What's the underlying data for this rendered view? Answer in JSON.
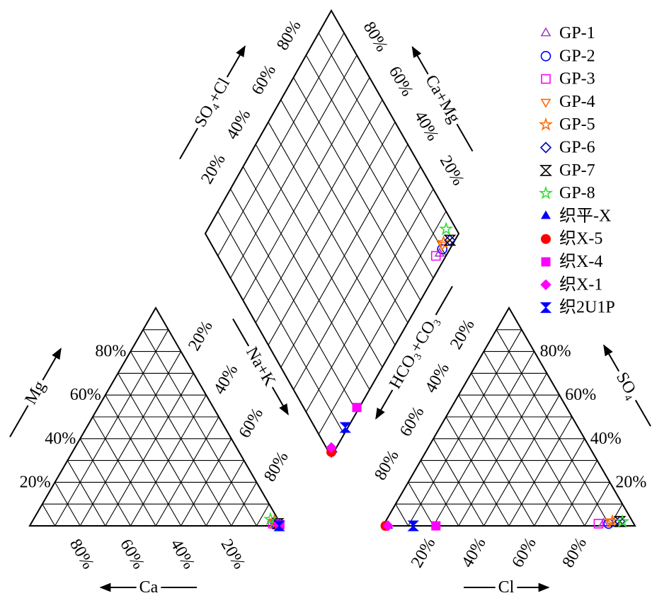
{
  "chart_data": {
    "type": "piper",
    "cation_axes": [
      "Ca",
      "Mg",
      "Na+K"
    ],
    "anion_axes": [
      "HCO₃+CO₃",
      "SO₄",
      "Cl"
    ],
    "diamond_axes": [
      "SO₄+Cl",
      "Ca+Mg"
    ],
    "ticks": [
      {
        "value": 20,
        "label": "20%"
      },
      {
        "value": 40,
        "label": "40%"
      },
      {
        "value": 60,
        "label": "60%"
      },
      {
        "value": 80,
        "label": "80%"
      }
    ],
    "grid_step": 10,
    "series": [
      {
        "name": "GP-1",
        "color": "#a040c0",
        "marker": "triangle-up",
        "filled": false,
        "cations": [
          2,
          1,
          97
        ],
        "anions": [
          12,
          1,
          87
        ]
      },
      {
        "name": "GP-2",
        "color": "#0000ff",
        "marker": "circle",
        "filled": false,
        "cations": [
          2,
          1,
          97
        ],
        "anions": [
          10,
          1,
          89
        ]
      },
      {
        "name": "GP-3",
        "color": "#ff00ff",
        "marker": "square",
        "filled": false,
        "cations": [
          3,
          1,
          96
        ],
        "anions": [
          14,
          1,
          85
        ]
      },
      {
        "name": "GP-4",
        "color": "#ff6a00",
        "marker": "triangle-down",
        "filled": false,
        "cations": [
          2,
          2,
          96
        ],
        "anions": [
          9,
          2,
          89
        ]
      },
      {
        "name": "GP-5",
        "color": "#ff6a00",
        "marker": "star",
        "filled": false,
        "cations": [
          2,
          2,
          96
        ],
        "anions": [
          8,
          2,
          90
        ]
      },
      {
        "name": "GP-6",
        "color": "#0000c0",
        "marker": "diamond",
        "filled": false,
        "cations": [
          1,
          1,
          98
        ],
        "anions": [
          5,
          2,
          93
        ]
      },
      {
        "name": "GP-7",
        "color": "#000000",
        "marker": "hourglass",
        "filled": false,
        "cations": [
          1,
          1,
          98
        ],
        "anions": [
          5,
          2,
          93
        ]
      },
      {
        "name": "GP-8",
        "color": "#33dd33",
        "marker": "star",
        "filled": false,
        "cations": [
          3,
          3,
          94
        ],
        "anions": [
          4,
          2,
          94
        ]
      },
      {
        "name": "织平-X",
        "color": "#0000ff",
        "marker": "triangle-up",
        "filled": true,
        "cations": [
          0.5,
          0.5,
          99
        ],
        "anions": [
          98,
          0,
          2
        ]
      },
      {
        "name": "织X-5",
        "color": "#ff0000",
        "marker": "circle",
        "filled": true,
        "cations": [
          1,
          0,
          99
        ],
        "anions": [
          99,
          0,
          1
        ]
      },
      {
        "name": "织X-4",
        "color": "#ff00ff",
        "marker": "square",
        "filled": true,
        "cations": [
          0.5,
          0.5,
          99
        ],
        "anions": [
          79,
          0,
          21
        ]
      },
      {
        "name": "织X-1",
        "color": "#ff00ff",
        "marker": "diamond",
        "filled": true,
        "cations": [
          1,
          1,
          98
        ],
        "anions": [
          98,
          0,
          2
        ]
      },
      {
        "name": "织2U1P",
        "color": "#0000ff",
        "marker": "hourglass",
        "filled": true,
        "cations": [
          1,
          0,
          99
        ],
        "anions": [
          88,
          0,
          12
        ]
      }
    ]
  }
}
